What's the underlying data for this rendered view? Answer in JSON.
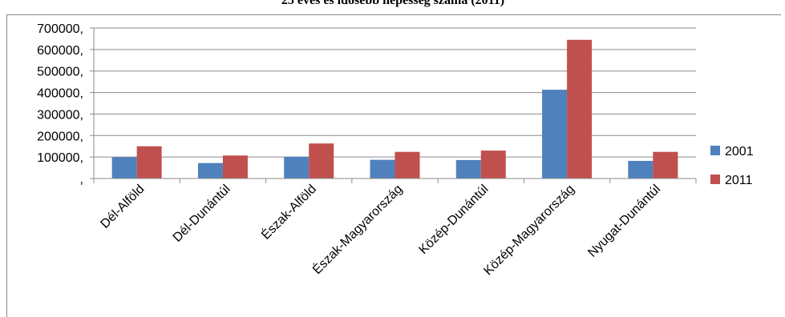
{
  "chart_data": {
    "type": "bar",
    "title": "25 éves és idősebb népesség száma (2011)",
    "xlabel": "",
    "ylabel": "",
    "categories": [
      "Dél-Alföld",
      "Dél-Dunántúl",
      "Észak-Alföld",
      "Észak-Magyarország",
      "Közép-Dunántúl",
      "Közép-Magyarország",
      "Nyugat-Dunántúl"
    ],
    "series": [
      {
        "name": "2001",
        "color": "#4f81bd",
        "values": [
          99000,
          72000,
          101000,
          87000,
          86000,
          413000,
          82000
        ]
      },
      {
        "name": "2011",
        "color": "#c0504d",
        "values": [
          150000,
          107000,
          163000,
          124000,
          130000,
          645000,
          124000
        ]
      }
    ],
    "ylim": [
      0,
      700000
    ],
    "yticks": [
      0,
      100000,
      200000,
      300000,
      400000,
      500000,
      600000,
      700000
    ],
    "ytick_labels": [
      ",",
      "100000,",
      "200000,",
      "300000,",
      "400000,",
      "500000,",
      "600000,",
      "700000,"
    ],
    "grid": true,
    "legend_position": "right"
  }
}
